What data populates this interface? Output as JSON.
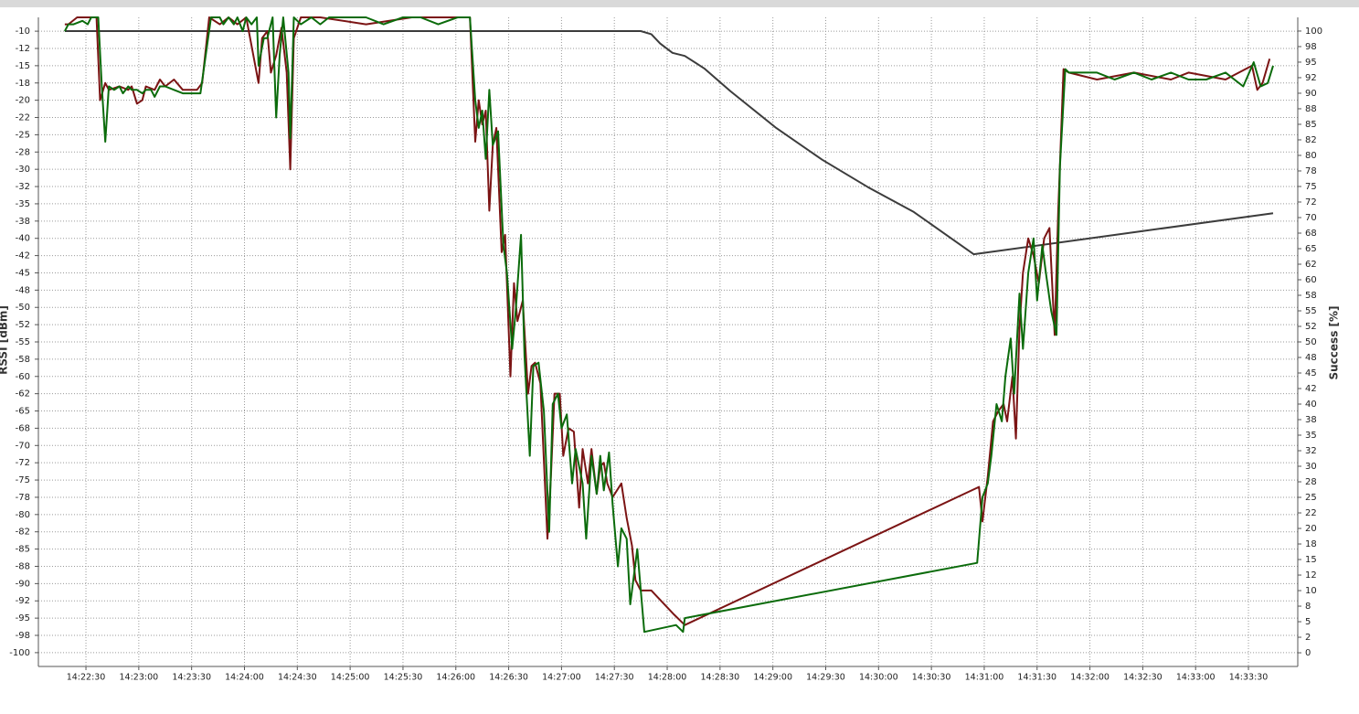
{
  "chart_data": {
    "type": "line",
    "ylabel": "RSSI [dBm]",
    "y2label": "Success [%]",
    "grid": true,
    "xlim": [
      "14:22:03",
      "14:33:58"
    ],
    "xticks": [
      "14:22:30",
      "14:23:00",
      "14:23:30",
      "14:24:00",
      "14:24:30",
      "14:25:00",
      "14:25:30",
      "14:26:00",
      "14:26:30",
      "14:27:00",
      "14:27:30",
      "14:28:00",
      "14:28:30",
      "14:29:00",
      "14:29:30",
      "14:30:00",
      "14:30:30",
      "14:31:00",
      "14:31:30",
      "14:32:00",
      "14:32:30",
      "14:33:00",
      "14:33:30"
    ],
    "ylim": [
      -102,
      -8
    ],
    "yticks": [
      -10,
      {
        "value": -12.5,
        "label": "-12"
      },
      -15,
      {
        "value": -17.5,
        "label": "-18"
      },
      -20,
      {
        "value": -22.5,
        "label": "-22"
      },
      -25,
      {
        "value": -27.5,
        "label": "-28"
      },
      -30,
      {
        "value": -32.5,
        "label": "-32"
      },
      -35,
      {
        "value": -37.5,
        "label": "-38"
      },
      -40,
      {
        "value": -42.5,
        "label": "-42"
      },
      -45,
      {
        "value": -47.5,
        "label": "-48"
      },
      -50,
      {
        "value": -52.5,
        "label": "-52"
      },
      -55,
      {
        "value": -57.5,
        "label": "-58"
      },
      -60,
      {
        "value": -62.5,
        "label": "-62"
      },
      -65,
      {
        "value": -67.5,
        "label": "-68"
      },
      -70,
      {
        "value": -72.5,
        "label": "-72"
      },
      -75,
      {
        "value": -77.5,
        "label": "-78"
      },
      -80,
      {
        "value": -82.5,
        "label": "-82"
      },
      -85,
      {
        "value": -87.5,
        "label": "-88"
      },
      -90,
      {
        "value": -92.5,
        "label": "-92"
      },
      -95,
      {
        "value": -97.5,
        "label": "-98"
      },
      -100
    ],
    "y2lim": [
      -2.2,
      102.2
    ],
    "y2ticks": [
      100,
      {
        "value": 97.5,
        "label": "98"
      },
      95,
      {
        "value": 92.5,
        "label": "92"
      },
      90,
      {
        "value": 87.5,
        "label": "88"
      },
      85,
      {
        "value": 82.5,
        "label": "82"
      },
      80,
      {
        "value": 77.5,
        "label": "78"
      },
      75,
      {
        "value": 72.5,
        "label": "72"
      },
      70,
      {
        "value": 67.5,
        "label": "68"
      },
      65,
      {
        "value": 62.5,
        "label": "62"
      },
      60,
      {
        "value": 57.5,
        "label": "58"
      },
      55,
      {
        "value": 52.5,
        "label": "52"
      },
      50,
      {
        "value": 47.5,
        "label": "48"
      },
      45,
      {
        "value": 42.5,
        "label": "42"
      },
      40,
      {
        "value": 37.5,
        "label": "38"
      },
      35,
      {
        "value": 32.5,
        "label": "32"
      },
      30,
      {
        "value": 27.5,
        "label": "28"
      },
      25,
      {
        "value": 22.5,
        "label": "22"
      },
      20,
      {
        "value": 17.5,
        "label": "18"
      },
      15,
      {
        "value": 12.5,
        "label": "12"
      },
      10,
      {
        "value": 7.5,
        "label": "8"
      },
      5,
      {
        "value": 2.5,
        "label": "2"
      },
      0
    ],
    "series": [
      {
        "color": "#3c3c3c",
        "axis": "y2",
        "x": [
          "14:22:18",
          "14:27:45",
          "14:27:51",
          "14:27:56",
          "14:28:03",
          "14:28:10",
          "14:28:21",
          "14:28:36",
          "14:29:02",
          "14:29:28",
          "14:29:54",
          "14:30:20",
          "14:30:54",
          "14:33:44"
        ],
        "values": [
          100,
          100,
          99.5,
          98,
          96.5,
          96,
          94,
          90.3,
          84.4,
          79.3,
          74.9,
          70.9,
          64.1,
          70.7
        ]
      },
      {
        "color": "#7b1414",
        "x": [
          "14:22:18",
          "14:22:20",
          "14:22:25",
          "14:22:33",
          "14:22:36",
          "14:22:38",
          "14:22:41",
          "14:22:43",
          "14:22:49",
          "14:22:54",
          "14:22:56",
          "14:22:59",
          "14:23:02",
          "14:23:04",
          "14:23:09",
          "14:23:12",
          "14:23:15",
          "14:23:20",
          "14:23:25",
          "14:23:33",
          "14:23:36",
          "14:23:40",
          "14:23:46",
          "14:23:51",
          "14:23:56",
          "14:24:01",
          "14:24:08",
          "14:24:10",
          "14:24:13",
          "14:24:15",
          "14:24:18",
          "14:24:21",
          "14:24:24",
          "14:24:26",
          "14:24:28",
          "14:24:32",
          "14:24:43",
          "14:25:09",
          "14:25:35",
          "14:26:01",
          "14:26:08",
          "14:26:11",
          "14:26:13",
          "14:26:15",
          "14:26:17",
          "14:26:19",
          "14:26:21",
          "14:26:23",
          "14:26:26",
          "14:26:28",
          "14:26:31",
          "14:26:33",
          "14:26:35",
          "14:26:38",
          "14:26:41",
          "14:26:43",
          "14:26:45",
          "14:26:48",
          "14:26:52",
          "14:26:54",
          "14:26:56",
          "14:26:59",
          "14:27:01",
          "14:27:04",
          "14:27:07",
          "14:27:10",
          "14:27:12",
          "14:27:15",
          "14:27:17",
          "14:27:20",
          "14:27:22",
          "14:27:24",
          "14:27:26",
          "14:27:29",
          "14:27:34",
          "14:27:37",
          "14:27:40",
          "14:27:42",
          "14:27:45",
          "14:27:51",
          "14:28:04",
          "14:28:10",
          "14:30:57",
          "14:30:59",
          "14:31:02",
          "14:31:05",
          "14:31:08",
          "14:31:11",
          "14:31:13",
          "14:31:16",
          "14:31:18",
          "14:31:20",
          "14:31:22",
          "14:31:25",
          "14:31:28",
          "14:31:31",
          "14:31:34",
          "14:31:37",
          "14:31:40",
          "14:31:42",
          "14:31:45",
          "14:31:48",
          "14:32:04",
          "14:32:25",
          "14:32:46",
          "14:32:56",
          "14:33:17",
          "14:33:32",
          "14:33:35",
          "14:33:38",
          "14:33:42"
        ],
        "values": [
          -9,
          -9,
          -8,
          -8,
          -8,
          -20,
          -17.5,
          -18.5,
          -18,
          -18.5,
          -18,
          -20.5,
          -20,
          -18,
          -18.5,
          -17,
          -18,
          -17,
          -18.5,
          -18.5,
          -17.5,
          -8,
          -9,
          -8,
          -9,
          -8,
          -17.5,
          -11,
          -10,
          -16,
          -13.5,
          -9.5,
          -16,
          -30,
          -11,
          -8,
          -8,
          -9,
          -8,
          -8,
          -8,
          -26,
          -20,
          -23.5,
          -21.5,
          -36,
          -26.5,
          -24,
          -42,
          -39.5,
          -60,
          -46.5,
          -52,
          -49,
          -62.5,
          -58.5,
          -58,
          -61,
          -83.5,
          -74.5,
          -62.5,
          -62.5,
          -71.5,
          -67.5,
          -68,
          -79,
          -70.5,
          -75.5,
          -70.5,
          -77,
          -73,
          -72.5,
          -75.5,
          -77.5,
          -75.5,
          -80.5,
          -84.5,
          -89.5,
          -91,
          -91,
          -94.5,
          -96,
          -76,
          -81,
          -74.5,
          -66.5,
          -65,
          -64,
          -66.5,
          -60,
          -69,
          -53,
          -45,
          -40,
          -42.5,
          -46.5,
          -40,
          -38.5,
          -54,
          -36,
          -15.5,
          -16,
          -17,
          -16,
          -17,
          -16,
          -17,
          -15,
          -18.5,
          -17.5,
          -14
        ]
      },
      {
        "color": "#0b6b0b",
        "x": [
          "14:22:18",
          "14:22:20",
          "14:22:23",
          "14:22:28",
          "14:22:31",
          "14:22:33",
          "14:22:37",
          "14:22:39",
          "14:22:41",
          "14:22:43",
          "14:22:46",
          "14:22:49",
          "14:22:51",
          "14:22:54",
          "14:22:56",
          "14:22:59",
          "14:23:02",
          "14:23:04",
          "14:23:07",
          "14:23:09",
          "14:23:12",
          "14:23:15",
          "14:23:20",
          "14:23:25",
          "14:23:35",
          "14:23:38",
          "14:23:41",
          "14:23:46",
          "14:23:48",
          "14:23:51",
          "14:23:54",
          "14:23:56",
          "14:23:59",
          "14:24:01",
          "14:24:04",
          "14:24:07",
          "14:24:08",
          "14:24:11",
          "14:24:13",
          "14:24:16",
          "14:24:18",
          "14:24:20",
          "14:24:22",
          "14:24:25",
          "14:24:26",
          "14:24:28",
          "14:24:32",
          "14:24:38",
          "14:24:43",
          "14:24:48",
          "14:24:58",
          "14:25:09",
          "14:25:19",
          "14:25:30",
          "14:25:40",
          "14:25:50",
          "14:26:01",
          "14:26:08",
          "14:26:11",
          "14:26:13",
          "14:26:15",
          "14:26:17",
          "14:26:19",
          "14:26:21",
          "14:26:24",
          "14:26:27",
          "14:26:29",
          "14:26:32",
          "14:26:34",
          "14:26:37",
          "14:26:39",
          "14:26:42",
          "14:26:44",
          "14:26:47",
          "14:26:50",
          "14:26:53",
          "14:26:55",
          "14:26:58",
          "14:27:00",
          "14:27:03",
          "14:27:06",
          "14:27:08",
          "14:27:12",
          "14:27:14",
          "14:27:17",
          "14:27:20",
          "14:27:22",
          "14:27:24",
          "14:27:27",
          "14:27:29",
          "14:27:32",
          "14:27:34",
          "14:27:37",
          "14:27:39",
          "14:27:43",
          "14:27:47",
          "14:28:05",
          "14:28:09",
          "14:28:10",
          "14:30:56",
          "14:30:59",
          "14:31:02",
          "14:31:04",
          "14:31:07",
          "14:31:10",
          "14:31:12",
          "14:31:15",
          "14:31:17",
          "14:31:20",
          "14:31:22",
          "14:31:25",
          "14:31:28",
          "14:31:30",
          "14:31:33",
          "14:31:35",
          "14:31:38",
          "14:31:41",
          "14:31:43",
          "14:31:46",
          "14:31:48",
          "14:32:04",
          "14:32:14",
          "14:32:25",
          "14:32:35",
          "14:32:46",
          "14:32:56",
          "14:33:06",
          "14:33:17",
          "14:33:27",
          "14:33:33",
          "14:33:37",
          "14:33:41",
          "14:33:44"
        ],
        "values": [
          -10,
          -9,
          -9,
          -8.5,
          -9,
          -8,
          -8,
          -18,
          -26,
          -18,
          -18.5,
          -18,
          -19,
          -18,
          -18.5,
          -18.5,
          -19,
          -18.5,
          -18.5,
          -19.5,
          -18,
          -18,
          -18.5,
          -19,
          -19,
          -13.5,
          -8,
          -8,
          -9,
          -8,
          -9,
          -8,
          -10,
          -8,
          -9,
          -8,
          -15,
          -11,
          -11,
          -8,
          -22.5,
          -13.5,
          -8,
          -16,
          -25.5,
          -8,
          -9,
          -8,
          -9,
          -8,
          -8,
          -8,
          -9,
          -8,
          -8,
          -9,
          -8,
          -8,
          -20,
          -24,
          -21.5,
          -28.5,
          -18.5,
          -26.5,
          -24.5,
          -41,
          -45,
          -56,
          -50.5,
          -39.5,
          -57,
          -71.5,
          -58.5,
          -58,
          -65,
          -82.5,
          -64,
          -62.5,
          -67.5,
          -65.5,
          -75.5,
          -70.5,
          -75.5,
          -83.5,
          -71.5,
          -77,
          -71.5,
          -76.5,
          -71,
          -78.5,
          -87.5,
          -82,
          -83.5,
          -93,
          -85,
          -97,
          -96,
          -97,
          -95,
          -87,
          -77.5,
          -75.5,
          -71.5,
          -64,
          -66.5,
          -60,
          -54.5,
          -62.5,
          -48,
          -56,
          -45,
          -40,
          -49,
          -41,
          -45,
          -50.5,
          -54,
          -29.5,
          -15.5,
          -16,
          -16,
          -17,
          -16,
          -17,
          -16,
          -17,
          -17,
          -16,
          -18,
          -14.5,
          -18,
          -17.5,
          -15
        ]
      }
    ]
  }
}
